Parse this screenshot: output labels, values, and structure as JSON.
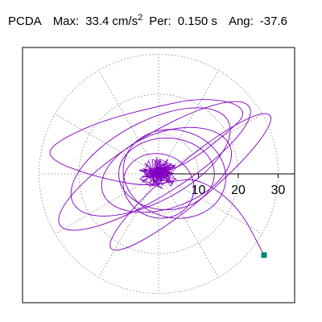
{
  "header": {
    "label": "PCDA",
    "max_label": "Max:",
    "max_value": "33.4",
    "max_unit": "cm/s",
    "max_unit_exp": "2",
    "per_label": "Per:",
    "per_value": "0.150 s",
    "ang_label": "Ang:",
    "ang_value": "-37.6"
  },
  "chart_data": {
    "type": "polar-trace",
    "title": "",
    "radial_ticks": [
      "10",
      "20",
      "30"
    ],
    "radial_tick_values": [
      10,
      20,
      30
    ],
    "ring_values": [
      10,
      20,
      30
    ],
    "radial_max": 34,
    "spokes_deg": [
      0,
      30,
      60,
      90,
      120,
      150,
      180,
      210,
      240,
      270,
      300,
      330
    ],
    "grid": true,
    "trace_color": "#8000c0",
    "marker_color": "#008878",
    "max_amplitude": 33.4,
    "max_angle_deg": -37.6,
    "trace": [
      [
        0,
        0
      ],
      [
        8,
        3
      ],
      [
        18,
        11
      ],
      [
        22,
        15
      ],
      [
        19,
        18
      ],
      [
        10,
        19
      ],
      [
        0,
        17
      ],
      [
        -12,
        14
      ],
      [
        -22,
        10
      ],
      [
        -28,
        6
      ],
      [
        -26,
        3
      ],
      [
        -18,
        0
      ],
      [
        -10,
        -2
      ],
      [
        -3,
        -3
      ],
      [
        3,
        -2
      ],
      [
        10,
        -1
      ],
      [
        20,
        -8
      ],
      [
        26.5,
        -20.5
      ]
    ]
  }
}
